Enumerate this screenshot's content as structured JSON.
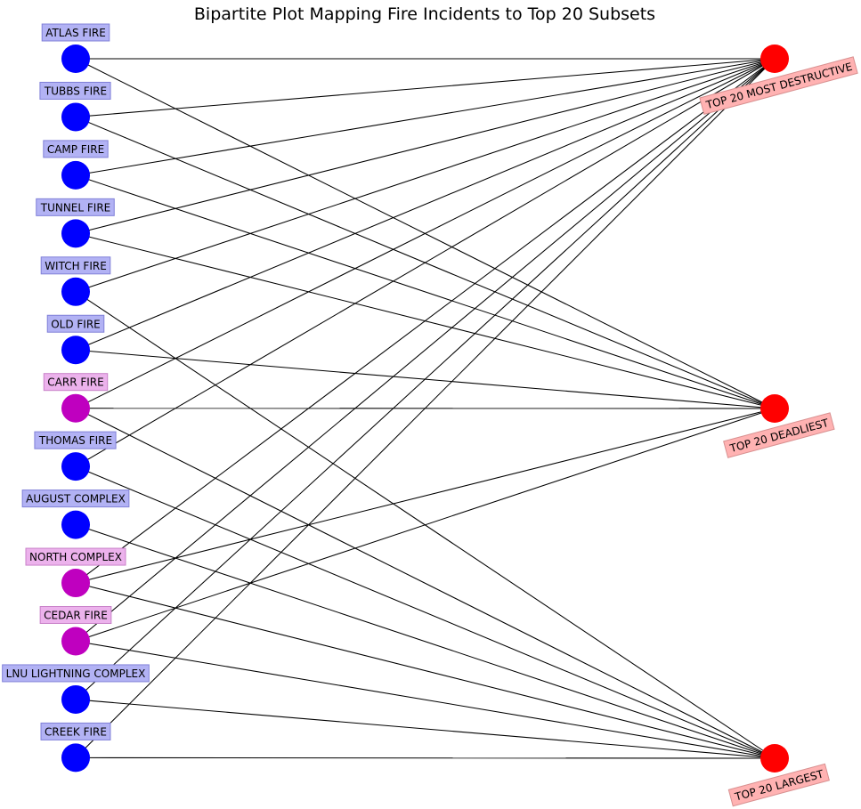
{
  "title": "Bipartite Plot Mapping Fire Incidents to Top 20 Subsets",
  "colors": {
    "fire_node_blue": "#0000ff",
    "fire_node_magenta": "#bf00bf",
    "subset_node": "#ff0000",
    "fire_label_blue_bg": "#b2b2f4",
    "fire_label_magenta_bg": "#ecb2ec",
    "subset_label_bg": "#ffb2b2",
    "edge": "#000000"
  },
  "fires": [
    {
      "id": "atlas",
      "label": "ATLAS FIRE",
      "color": "blue"
    },
    {
      "id": "tubbs",
      "label": "TUBBS FIRE",
      "color": "blue"
    },
    {
      "id": "camp",
      "label": "CAMP FIRE",
      "color": "blue"
    },
    {
      "id": "tunnel",
      "label": "TUNNEL FIRE",
      "color": "blue"
    },
    {
      "id": "witch",
      "label": "WITCH FIRE",
      "color": "blue"
    },
    {
      "id": "old",
      "label": "OLD FIRE",
      "color": "blue"
    },
    {
      "id": "carr",
      "label": "CARR FIRE",
      "color": "magenta"
    },
    {
      "id": "thomas",
      "label": "THOMAS FIRE",
      "color": "blue"
    },
    {
      "id": "august",
      "label": "AUGUST COMPLEX",
      "color": "blue"
    },
    {
      "id": "north",
      "label": "NORTH COMPLEX",
      "color": "magenta"
    },
    {
      "id": "cedar",
      "label": "CEDAR FIRE",
      "color": "magenta"
    },
    {
      "id": "lnu",
      "label": "LNU LIGHTNING COMPLEX",
      "color": "blue"
    },
    {
      "id": "creek",
      "label": "CREEK FIRE",
      "color": "blue"
    }
  ],
  "subsets": [
    {
      "id": "destructive",
      "label": "TOP 20 MOST DESTRUCTIVE"
    },
    {
      "id": "deadliest",
      "label": "TOP 20 DEADLIEST"
    },
    {
      "id": "largest",
      "label": "TOP 20 LARGEST"
    }
  ],
  "edges": [
    [
      "atlas",
      "destructive"
    ],
    [
      "atlas",
      "deadliest"
    ],
    [
      "tubbs",
      "destructive"
    ],
    [
      "tubbs",
      "deadliest"
    ],
    [
      "camp",
      "destructive"
    ],
    [
      "camp",
      "deadliest"
    ],
    [
      "tunnel",
      "destructive"
    ],
    [
      "tunnel",
      "deadliest"
    ],
    [
      "witch",
      "destructive"
    ],
    [
      "witch",
      "largest"
    ],
    [
      "old",
      "destructive"
    ],
    [
      "old",
      "deadliest"
    ],
    [
      "carr",
      "destructive"
    ],
    [
      "carr",
      "deadliest"
    ],
    [
      "carr",
      "largest"
    ],
    [
      "thomas",
      "destructive"
    ],
    [
      "thomas",
      "largest"
    ],
    [
      "august",
      "largest"
    ],
    [
      "north",
      "destructive"
    ],
    [
      "north",
      "deadliest"
    ],
    [
      "north",
      "largest"
    ],
    [
      "cedar",
      "destructive"
    ],
    [
      "cedar",
      "deadliest"
    ],
    [
      "cedar",
      "largest"
    ],
    [
      "lnu",
      "destructive"
    ],
    [
      "lnu",
      "largest"
    ],
    [
      "creek",
      "destructive"
    ],
    [
      "creek",
      "largest"
    ]
  ]
}
